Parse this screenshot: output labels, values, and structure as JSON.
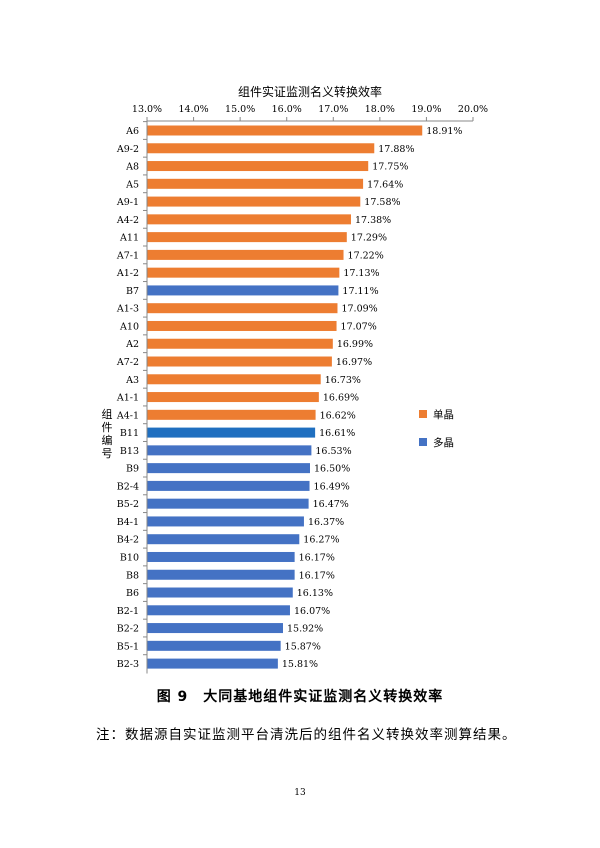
{
  "chart_data": {
    "type": "bar",
    "orientation": "horizontal",
    "title": "组件实证监测名义转换效率",
    "ylabel": "组件编号",
    "xlabel": "",
    "xlim": [
      13.0,
      20.0
    ],
    "x_ticks": [
      "13.0%",
      "14.0%",
      "15.0%",
      "16.0%",
      "17.0%",
      "18.0%",
      "19.0%",
      "20.0%"
    ],
    "x_axis_position": "top",
    "grid": false,
    "legend_position": "right",
    "legend": [
      {
        "name": "单晶",
        "color": "#ED7D31"
      },
      {
        "name": "多晶",
        "color": "#4472C4"
      }
    ],
    "categories": [
      "A6",
      "A9-2",
      "A8",
      "A5",
      "A9-1",
      "A4-2",
      "A11",
      "A7-1",
      "A1-2",
      "B7",
      "A1-3",
      "A10",
      "A2",
      "A7-2",
      "A3",
      "A1-1",
      "A4-1",
      "B11",
      "B13",
      "B9",
      "B2-4",
      "B5-2",
      "B4-1",
      "B4-2",
      "B10",
      "B8",
      "B6",
      "B2-1",
      "B2-2",
      "B5-1",
      "B2-3"
    ],
    "values": [
      18.91,
      17.88,
      17.75,
      17.64,
      17.58,
      17.38,
      17.29,
      17.22,
      17.13,
      17.11,
      17.09,
      17.07,
      16.99,
      16.97,
      16.73,
      16.69,
      16.62,
      16.61,
      16.53,
      16.5,
      16.49,
      16.47,
      16.37,
      16.27,
      16.17,
      16.17,
      16.13,
      16.07,
      15.92,
      15.87,
      15.81
    ],
    "value_labels": [
      "18.91%",
      "17.88%",
      "17.75%",
      "17.64%",
      "17.58%",
      "17.38%",
      "17.29%",
      "17.22%",
      "17.13%",
      "17.11%",
      "17.09%",
      "17.07%",
      "16.99%",
      "16.97%",
      "16.73%",
      "16.69%",
      "16.62%",
      "16.61%",
      "16.53%",
      "16.50%",
      "16.49%",
      "16.47%",
      "16.37%",
      "16.27%",
      "16.17%",
      "16.17%",
      "16.13%",
      "16.07%",
      "15.92%",
      "15.87%",
      "15.81%"
    ],
    "series_of_bar": [
      "单晶",
      "单晶",
      "单晶",
      "单晶",
      "单晶",
      "单晶",
      "单晶",
      "单晶",
      "单晶",
      "多晶",
      "单晶",
      "单晶",
      "单晶",
      "单晶",
      "单晶",
      "单晶",
      "单晶",
      "多晶",
      "多晶",
      "多晶",
      "多晶",
      "多晶",
      "多晶",
      "多晶",
      "多晶",
      "多晶",
      "多晶",
      "多晶",
      "多晶",
      "多晶",
      "多晶"
    ],
    "highlight_color": "#1F6FC0",
    "highlight_category": "B11"
  },
  "caption": "图 9　大同基地组件实证监测名义转换效率",
  "note": "注：数据源自实证监测平台清洗后的组件名义转换效率测算结果。",
  "page_number": "13"
}
